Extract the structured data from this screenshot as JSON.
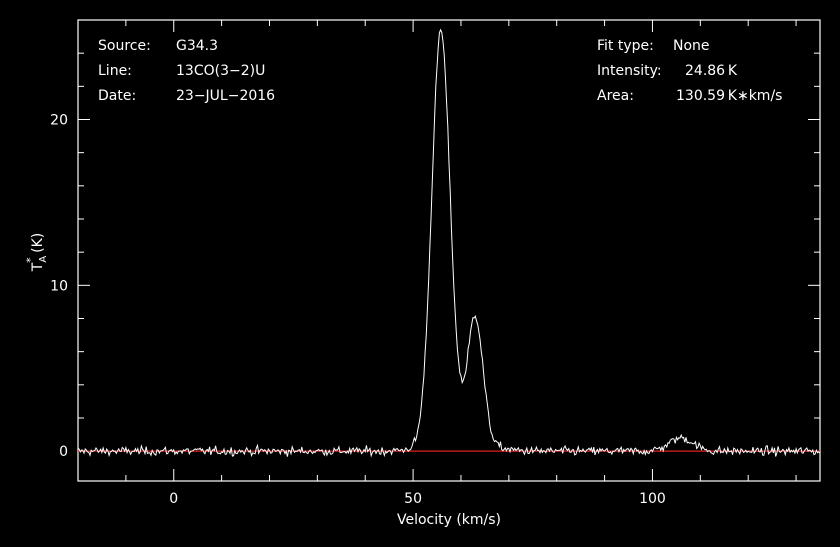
{
  "info_left": {
    "source_label": "Source:",
    "source_value": "G34.3",
    "line_label": "Line:",
    "line_value": "13CO(3−2)U",
    "date_label": "Date:",
    "date_value": "23−JUL−2016"
  },
  "info_right": {
    "fit_label": "Fit type:",
    "fit_value": "None",
    "intensity_label": "Intensity:",
    "intensity_value": "24.86 K",
    "area_label": "Area:",
    "area_value": "130.59 K∗km/s"
  },
  "chart_data": {
    "type": "line",
    "xlabel": "Velocity (km/s)",
    "ylabel_main": "T",
    "ylabel_sup": "*",
    "ylabel_sub": "A",
    "ylabel_unit": " (K)",
    "xlim": [
      -20,
      135
    ],
    "ylim": [
      -1.8,
      26
    ],
    "x_ticks": [
      0,
      50,
      100
    ],
    "y_ticks": [
      0,
      10,
      20
    ],
    "baseline": 0,
    "colors": {
      "spectrum": "#ffffff",
      "baseline": "#e0201e",
      "background": "#000000"
    },
    "series": [
      {
        "components": [
          {
            "center": 55.8,
            "amplitude": 24.6,
            "sigma": 1.9
          },
          {
            "center": 63.0,
            "amplitude": 7.4,
            "sigma": 1.6
          },
          {
            "center": 106.0,
            "amplitude": 0.8,
            "sigma": 2.5
          },
          {
            "center": 59.5,
            "amplitude": 1.0,
            "sigma": 5.0
          }
        ],
        "noise_rms": 0.18,
        "channel_width": 0.25
      }
    ]
  }
}
